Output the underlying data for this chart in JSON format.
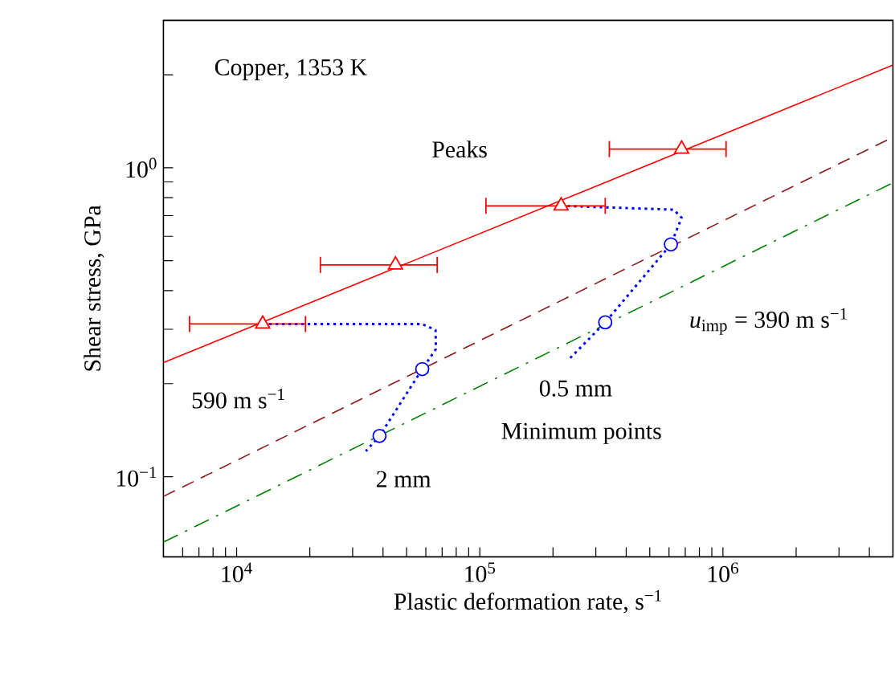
{
  "chart_data": {
    "type": "line",
    "xlabel": "Plastic deformation rate, s$^{−1}$",
    "ylabel": "Shear stress, GPa",
    "log": "xy",
    "xlim": [
      5000,
      5000000
    ],
    "ylim": [
      0.055,
      3
    ],
    "xticks": [
      {
        "value": 6000,
        "label": null
      },
      {
        "value": 7000,
        "label": null
      },
      {
        "value": 8000,
        "label": null
      },
      {
        "value": 9000,
        "label": null
      },
      {
        "value": 10000,
        "label": "10$^{4}$"
      },
      {
        "value": 20000,
        "label": null
      },
      {
        "value": 30000,
        "label": null
      },
      {
        "value": 40000,
        "label": null
      },
      {
        "value": 50000,
        "label": null
      },
      {
        "value": 60000,
        "label": null
      },
      {
        "value": 70000,
        "label": null
      },
      {
        "value": 80000,
        "label": null
      },
      {
        "value": 90000,
        "label": null
      },
      {
        "value": 100000,
        "label": "10$^{5}$"
      },
      {
        "value": 200000,
        "label": null
      },
      {
        "value": 300000,
        "label": null
      },
      {
        "value": 400000,
        "label": null
      },
      {
        "value": 500000,
        "label": null
      },
      {
        "value": 600000,
        "label": null
      },
      {
        "value": 700000,
        "label": null
      },
      {
        "value": 800000,
        "label": null
      },
      {
        "value": 900000,
        "label": null
      },
      {
        "value": 1000000,
        "label": "10$^{6}$"
      },
      {
        "value": 2000000,
        "label": null
      },
      {
        "value": 3000000,
        "label": null
      },
      {
        "value": 4000000,
        "label": null
      }
    ],
    "yticks": [
      {
        "value": 0.1,
        "label": "10$^{−1}$"
      },
      {
        "value": 0.2,
        "label": null
      },
      {
        "value": 0.3,
        "label": null
      },
      {
        "value": 0.4,
        "label": null
      },
      {
        "value": 0.5,
        "label": null
      },
      {
        "value": 0.6,
        "label": null
      },
      {
        "value": 0.7,
        "label": null
      },
      {
        "value": 0.8,
        "label": null
      },
      {
        "value": 0.9,
        "label": null
      },
      {
        "value": 1,
        "label": "10$^{0}$"
      },
      {
        "value": 2,
        "label": null
      }
    ],
    "series": [
      {
        "color": "#ff0000",
        "line_style": "solid",
        "marker": "none",
        "x": [
          5000,
          5000000
        ],
        "values": [
          0.234,
          2.15
        ]
      },
      {
        "color": "#8b1a1a",
        "line_style": "dashed",
        "marker": "none",
        "x": [
          5000,
          5000000
        ],
        "values": [
          0.0863,
          1.256
        ]
      },
      {
        "color": "#008000",
        "line_style": "dashdot",
        "marker": "none",
        "x": [
          5000,
          5000000
        ],
        "values": [
          0.0614,
          0.894
        ]
      },
      {
        "color": "#0000ff",
        "line_style": "dotted",
        "marker": "none",
        "x": [
          12800,
          58000,
          65800,
          66000,
          58000,
          38700,
          34000
        ],
        "values": [
          0.312,
          0.312,
          0.298,
          0.259,
          0.223,
          0.1355,
          0.121
        ]
      },
      {
        "color": "#0000ff",
        "line_style": "dotted",
        "marker": "none",
        "x": [
          216000,
          627000,
          676000,
          611000,
          328000,
          234000
        ],
        "values": [
          0.753,
          0.732,
          0.689,
          0.565,
          0.316,
          0.241
        ]
      },
      {
        "type": "scatter",
        "color": "#ff0000",
        "marker": "triangle",
        "x": [
          12800,
          45000,
          216000,
          676000
        ],
        "values": [
          0.312,
          0.485,
          0.753,
          1.15
        ],
        "xerrors": [
          [
            6400,
            19200
          ],
          [
            22100,
            66800
          ],
          [
            106000,
            328000
          ],
          [
            341000,
            1030000
          ]
        ]
      },
      {
        "type": "scatter",
        "color": "#0000ff",
        "marker": "circle",
        "x": [
          58000,
          38700,
          611000,
          328000
        ],
        "values": [
          0.223,
          0.1355,
          0.565,
          0.316
        ]
      }
    ],
    "annotations": [
      "Copper, 1353 K",
      "Peaks",
      "590 m s$^{−1}$",
      "*u*$_{imp}$ = 390 m s$^{−1}$",
      "0.5 mm",
      "Minimum points",
      "2 mm"
    ]
  }
}
